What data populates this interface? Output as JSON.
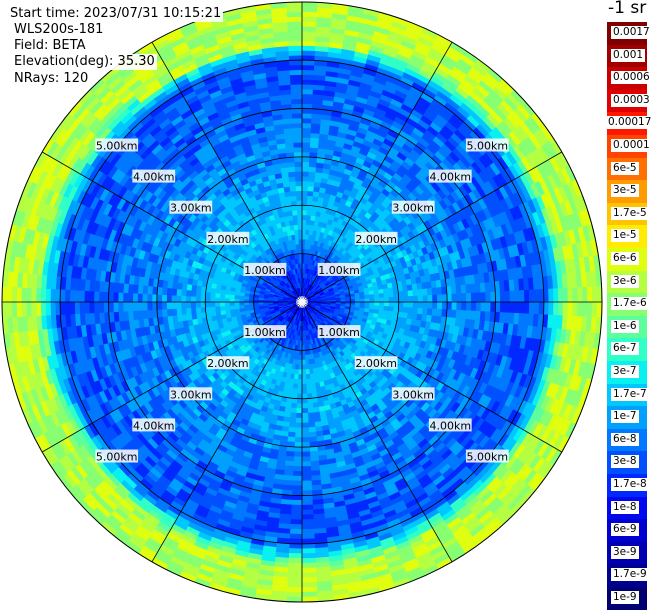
{
  "info": {
    "start_time": "Start time: 2023/07/31 10:15:21",
    "device": "WLS200s-181",
    "field": "Field: BETA",
    "elevation": "Elevation(deg): 35.30",
    "nrays": "NRays: 120"
  },
  "chart_data": {
    "type": "heatmap",
    "projection": "polar",
    "title": "",
    "range_ring_labels": [
      "1.00km",
      "2.00km",
      "3.00km",
      "4.00km",
      "5.00km"
    ],
    "range_rings_km": [
      1,
      2,
      3,
      4,
      5
    ],
    "max_range_km": 6.2,
    "ray_count": 120,
    "radial_gridlines_deg": [
      0,
      30,
      60,
      90,
      120,
      150,
      180,
      210,
      240,
      270,
      300,
      330
    ],
    "colorbar": {
      "unit": "-1 sr",
      "labels": [
        "0.0017",
        "0.001",
        "0.0006",
        "0.0003",
        "0.00017",
        "0.0001",
        "6e-5",
        "3e-5",
        "1.7e-5",
        "1e-5",
        "6e-6",
        "3e-6",
        "1.7e-6",
        "1e-6",
        "6e-7",
        "3e-7",
        "1.7e-7",
        "1e-7",
        "6e-8",
        "3e-8",
        "1.7e-8",
        "1e-8",
        "6e-9",
        "3e-9",
        "1.7e-9",
        "1e-9"
      ],
      "colors": [
        "#800000",
        "#a00000",
        "#c80000",
        "#e00000",
        "#ff1800",
        "#ff4400",
        "#ff7000",
        "#ff9c00",
        "#ffc400",
        "#ffec00",
        "#e0ff10",
        "#b4ff42",
        "#88ff70",
        "#5cff9c",
        "#30ffc8",
        "#08f0f0",
        "#00c8ff",
        "#00a0ff",
        "#0078ff",
        "#0050ff",
        "#0028ff",
        "#0008f0",
        "#0000d0",
        "#0000b0",
        "#000090",
        "#000070"
      ]
    },
    "value_profile": [
      {
        "range_km": 0.0,
        "value": "1e-8"
      },
      {
        "range_km": 0.9,
        "value": "3e-8"
      },
      {
        "range_km": 1.5,
        "value": "1.7e-7"
      },
      {
        "range_km": 2.6,
        "value": "1e-7"
      },
      {
        "range_km": 3.5,
        "value": "6e-8"
      },
      {
        "range_km": 5.0,
        "value": "3e-8"
      },
      {
        "range_km": 5.5,
        "value": "3e-6"
      }
    ]
  }
}
